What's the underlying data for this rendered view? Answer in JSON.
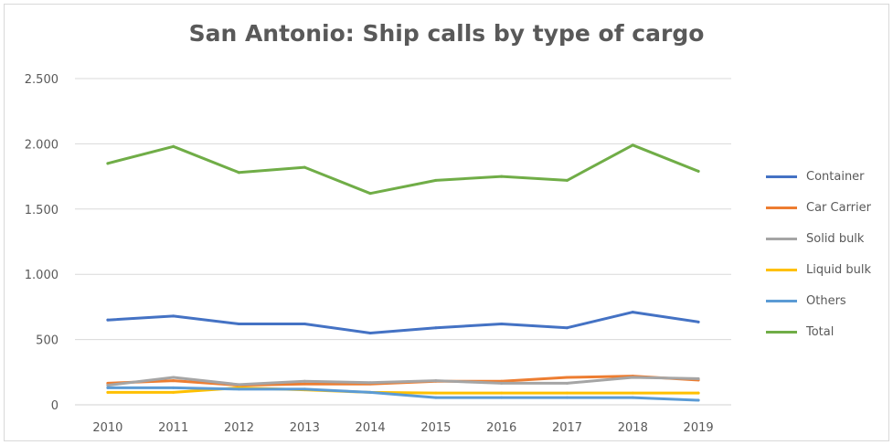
{
  "chart_data": {
    "type": "line",
    "title": "San Antonio: Ship calls by type of cargo",
    "xlabel": "",
    "ylabel": "",
    "categories": [
      "2010",
      "2011",
      "2012",
      "2013",
      "2014",
      "2015",
      "2016",
      "2017",
      "2018",
      "2019"
    ],
    "ylim": [
      0,
      2500
    ],
    "yticks": [
      0,
      500,
      1000,
      1500,
      2000,
      2500
    ],
    "ytick_labels": [
      "0",
      "500",
      "1.000",
      "1.500",
      "2.000",
      "2.500"
    ],
    "grid": true,
    "legend_position": "right",
    "series": [
      {
        "name": "Container",
        "color": "#4472c4",
        "values": [
          650,
          680,
          620,
          620,
          550,
          590,
          620,
          590,
          710,
          635
        ]
      },
      {
        "name": "Car Carrier",
        "color": "#ed7d31",
        "values": [
          165,
          185,
          150,
          160,
          160,
          180,
          180,
          210,
          220,
          190
        ]
      },
      {
        "name": "Solid bulk",
        "color": "#a5a5a5",
        "values": [
          150,
          210,
          155,
          180,
          170,
          185,
          165,
          165,
          210,
          200
        ]
      },
      {
        "name": "Liquid bulk",
        "color": "#ffc000",
        "values": [
          95,
          95,
          130,
          115,
          95,
          90,
          90,
          90,
          90,
          90
        ]
      },
      {
        "name": "Others",
        "color": "#5b9bd5",
        "values": [
          130,
          130,
          120,
          120,
          95,
          55,
          55,
          55,
          55,
          35
        ]
      },
      {
        "name": "Total",
        "color": "#70ad47",
        "values": [
          1850,
          1980,
          1780,
          1820,
          1620,
          1720,
          1750,
          1720,
          1990,
          1790
        ]
      }
    ]
  }
}
